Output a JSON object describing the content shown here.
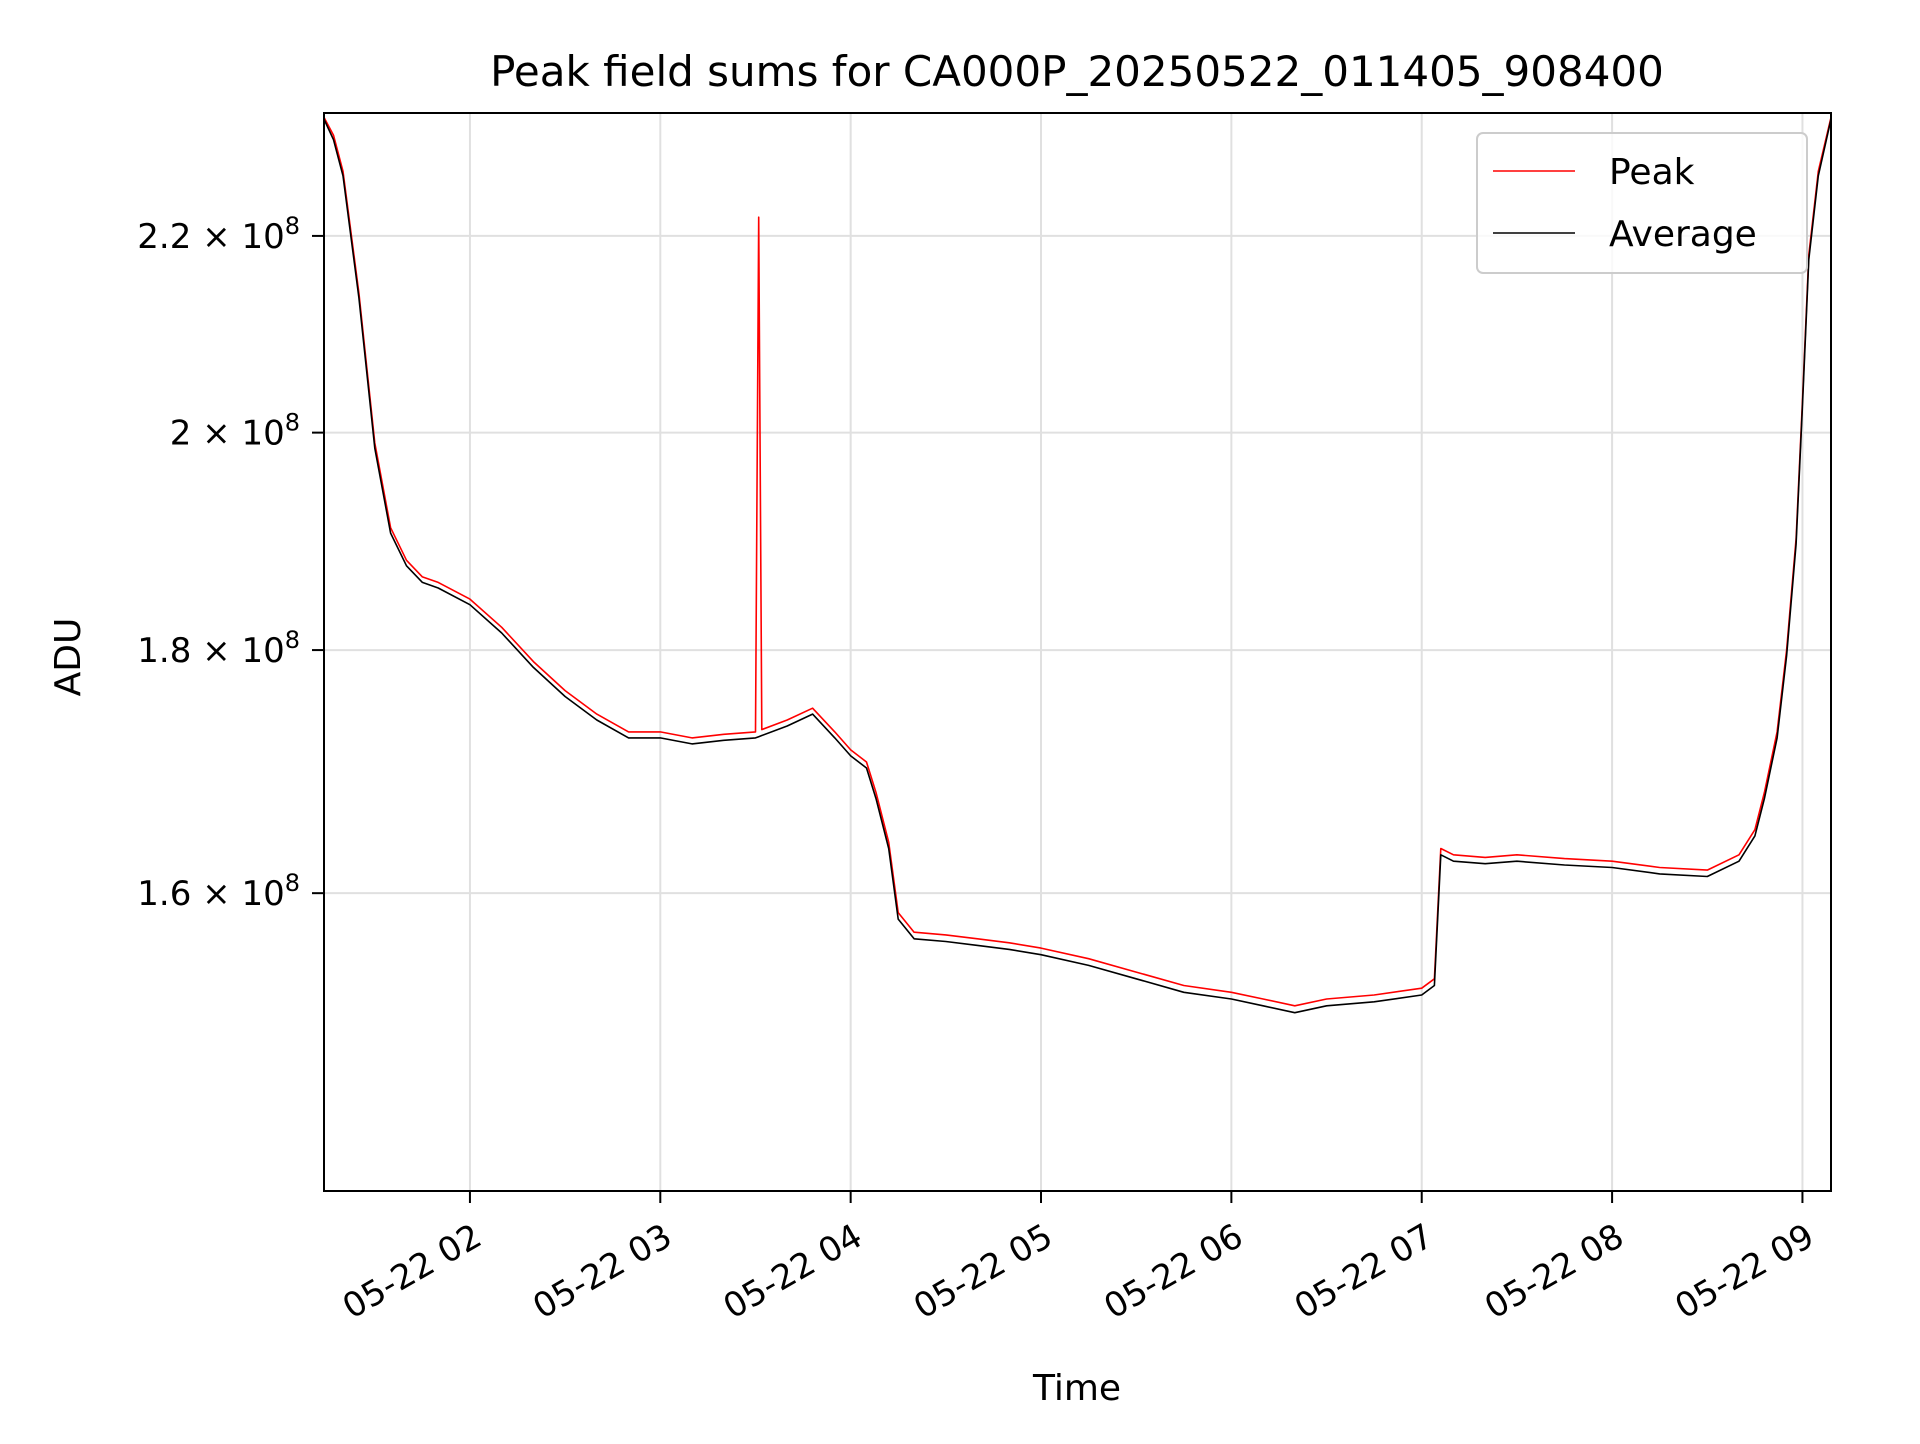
{
  "chart_data": {
    "type": "line",
    "title": "Peak field sums for CA000P_20250522_011405_908400",
    "xlabel": "Time",
    "ylabel": "ADU",
    "x_type": "time",
    "xlim": [
      "2025-05-22 01:14",
      "2025-05-22 09:09"
    ],
    "ylim": [
      138500000,
      233500000
    ],
    "y_scale": "log",
    "grid": true,
    "legend_position": "upper right",
    "x_ticks": [
      {
        "value": "2025-05-22 02:00",
        "label": "05-22 02"
      },
      {
        "value": "2025-05-22 03:00",
        "label": "05-22 03"
      },
      {
        "value": "2025-05-22 04:00",
        "label": "05-22 04"
      },
      {
        "value": "2025-05-22 05:00",
        "label": "05-22 05"
      },
      {
        "value": "2025-05-22 06:00",
        "label": "05-22 06"
      },
      {
        "value": "2025-05-22 07:00",
        "label": "05-22 07"
      },
      {
        "value": "2025-05-22 08:00",
        "label": "05-22 08"
      },
      {
        "value": "2025-05-22 09:00",
        "label": "05-22 09"
      }
    ],
    "y_ticks": [
      {
        "value": 160000000,
        "label": "1.6 × 10",
        "exp": "8"
      },
      {
        "value": 180000000,
        "label": "1.8 × 10",
        "exp": "8"
      },
      {
        "value": 200000000,
        "label": "2 × 10",
        "exp": "8"
      },
      {
        "value": 220000000,
        "label": "2.2 × 10",
        "exp": "8"
      }
    ],
    "series": [
      {
        "name": "Peak",
        "color": "#ff0000",
        "x": [
          "2025-05-22 01:14",
          "2025-05-22 01:17",
          "2025-05-22 01:20",
          "2025-05-22 01:25",
          "2025-05-22 01:30",
          "2025-05-22 01:35",
          "2025-05-22 01:40",
          "2025-05-22 01:45",
          "2025-05-22 01:50",
          "2025-05-22 02:00",
          "2025-05-22 02:10",
          "2025-05-22 02:20",
          "2025-05-22 02:30",
          "2025-05-22 02:40",
          "2025-05-22 02:50",
          "2025-05-22 03:00",
          "2025-05-22 03:10",
          "2025-05-22 03:20",
          "2025-05-22 03:30",
          "2025-05-22 03:31",
          "2025-05-22 03:32",
          "2025-05-22 03:40",
          "2025-05-22 03:48",
          "2025-05-22 03:55",
          "2025-05-22 04:00",
          "2025-05-22 04:05",
          "2025-05-22 04:08",
          "2025-05-22 04:12",
          "2025-05-22 04:15",
          "2025-05-22 04:20",
          "2025-05-22 04:30",
          "2025-05-22 04:40",
          "2025-05-22 04:50",
          "2025-05-22 05:00",
          "2025-05-22 05:15",
          "2025-05-22 05:30",
          "2025-05-22 05:45",
          "2025-05-22 06:00",
          "2025-05-22 06:10",
          "2025-05-22 06:20",
          "2025-05-22 06:30",
          "2025-05-22 06:45",
          "2025-05-22 07:00",
          "2025-05-22 07:04",
          "2025-05-22 07:06",
          "2025-05-22 07:10",
          "2025-05-22 07:20",
          "2025-05-22 07:30",
          "2025-05-22 07:45",
          "2025-05-22 08:00",
          "2025-05-22 08:15",
          "2025-05-22 08:30",
          "2025-05-22 08:40",
          "2025-05-22 08:45",
          "2025-05-22 08:48",
          "2025-05-22 08:52",
          "2025-05-22 08:55",
          "2025-05-22 08:58",
          "2025-05-22 09:00",
          "2025-05-22 09:02",
          "2025-05-22 09:05",
          "2025-05-22 09:09"
        ],
        "values": [
          233000000,
          231000000,
          227000000,
          214000000,
          199000000,
          191000000,
          188000000,
          186500000,
          186000000,
          184500000,
          182000000,
          179000000,
          176500000,
          174500000,
          173000000,
          173000000,
          172500000,
          172800000,
          173000000,
          222000000,
          173200000,
          174000000,
          175000000,
          173000000,
          171500000,
          170500000,
          168000000,
          164000000,
          158500000,
          157000000,
          156800000,
          156500000,
          156200000,
          155800000,
          155000000,
          154000000,
          153000000,
          152500000,
          152000000,
          151500000,
          152000000,
          152300000,
          152800000,
          153500000,
          163500000,
          163000000,
          162800000,
          163000000,
          162700000,
          162500000,
          162000000,
          161800000,
          163000000,
          165000000,
          168000000,
          173000000,
          180000000,
          190000000,
          203000000,
          218000000,
          227000000,
          233000000
        ]
      },
      {
        "name": "Average",
        "color": "#000000",
        "x": [
          "2025-05-22 01:14",
          "2025-05-22 01:17",
          "2025-05-22 01:20",
          "2025-05-22 01:25",
          "2025-05-22 01:30",
          "2025-05-22 01:35",
          "2025-05-22 01:40",
          "2025-05-22 01:45",
          "2025-05-22 01:50",
          "2025-05-22 02:00",
          "2025-05-22 02:10",
          "2025-05-22 02:20",
          "2025-05-22 02:30",
          "2025-05-22 02:40",
          "2025-05-22 02:50",
          "2025-05-22 03:00",
          "2025-05-22 03:10",
          "2025-05-22 03:20",
          "2025-05-22 03:30",
          "2025-05-22 03:31",
          "2025-05-22 03:32",
          "2025-05-22 03:40",
          "2025-05-22 03:48",
          "2025-05-22 03:55",
          "2025-05-22 04:00",
          "2025-05-22 04:05",
          "2025-05-22 04:08",
          "2025-05-22 04:12",
          "2025-05-22 04:15",
          "2025-05-22 04:20",
          "2025-05-22 04:30",
          "2025-05-22 04:40",
          "2025-05-22 04:50",
          "2025-05-22 05:00",
          "2025-05-22 05:15",
          "2025-05-22 05:30",
          "2025-05-22 05:45",
          "2025-05-22 06:00",
          "2025-05-22 06:10",
          "2025-05-22 06:20",
          "2025-05-22 06:30",
          "2025-05-22 06:45",
          "2025-05-22 07:00",
          "2025-05-22 07:04",
          "2025-05-22 07:06",
          "2025-05-22 07:10",
          "2025-05-22 07:20",
          "2025-05-22 07:30",
          "2025-05-22 07:45",
          "2025-05-22 08:00",
          "2025-05-22 08:15",
          "2025-05-22 08:30",
          "2025-05-22 08:40",
          "2025-05-22 08:45",
          "2025-05-22 08:48",
          "2025-05-22 08:52",
          "2025-05-22 08:55",
          "2025-05-22 08:58",
          "2025-05-22 09:00",
          "2025-05-22 09:02",
          "2025-05-22 09:05",
          "2025-05-22 09:09"
        ],
        "values": [
          232800000,
          230500000,
          226500000,
          213500000,
          198500000,
          190500000,
          187500000,
          186000000,
          185500000,
          184000000,
          181500000,
          178500000,
          176000000,
          174000000,
          172500000,
          172500000,
          172000000,
          172300000,
          172500000,
          172600000,
          172700000,
          173500000,
          174500000,
          172500000,
          171000000,
          170000000,
          167500000,
          163500000,
          158000000,
          156500000,
          156300000,
          156000000,
          155700000,
          155300000,
          154500000,
          153500000,
          152500000,
          152000000,
          151500000,
          151000000,
          151500000,
          151800000,
          152300000,
          153000000,
          163000000,
          162500000,
          162300000,
          162500000,
          162200000,
          162000000,
          161500000,
          161300000,
          162500000,
          164500000,
          167500000,
          172500000,
          179500000,
          189500000,
          202500000,
          217500000,
          226500000,
          232800000
        ]
      }
    ]
  }
}
